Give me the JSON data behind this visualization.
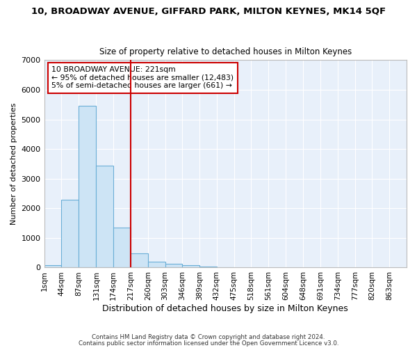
{
  "title": "10, BROADWAY AVENUE, GIFFARD PARK, MILTON KEYNES, MK14 5QF",
  "subtitle": "Size of property relative to detached houses in Milton Keynes",
  "xlabel": "Distribution of detached houses by size in Milton Keynes",
  "ylabel": "Number of detached properties",
  "bar_color": "#cde4f5",
  "bar_edge_color": "#6aaed6",
  "background_color": "#e8f0fa",
  "grid_color": "#ffffff",
  "fig_background": "#ffffff",
  "bins": [
    1,
    44,
    87,
    131,
    174,
    217,
    260,
    303,
    346,
    389,
    432,
    475,
    518,
    561,
    604,
    648,
    691,
    734,
    777,
    820,
    863,
    906
  ],
  "bin_labels": [
    "1sqm",
    "44sqm",
    "87sqm",
    "131sqm",
    "174sqm",
    "217sqm",
    "260sqm",
    "303sqm",
    "346sqm",
    "389sqm",
    "432sqm",
    "475sqm",
    "518sqm",
    "561sqm",
    "604sqm",
    "648sqm",
    "691sqm",
    "734sqm",
    "777sqm",
    "820sqm",
    "863sqm"
  ],
  "bar_heights": [
    80,
    2300,
    5450,
    3450,
    1350,
    480,
    200,
    130,
    80,
    30,
    5,
    0,
    0,
    0,
    0,
    0,
    0,
    0,
    0,
    0,
    0
  ],
  "vline_x": 217,
  "vline_color": "#cc0000",
  "ylim": [
    0,
    7000
  ],
  "yticks": [
    0,
    1000,
    2000,
    3000,
    4000,
    5000,
    6000,
    7000
  ],
  "annotation_title": "10 BROADWAY AVENUE: 221sqm",
  "annotation_line1": "← 95% of detached houses are smaller (12,483)",
  "annotation_line2": "5% of semi-detached houses are larger (661) →",
  "annotation_box_color": "#ffffff",
  "annotation_box_edge": "#cc0000",
  "footer1": "Contains HM Land Registry data © Crown copyright and database right 2024.",
  "footer2": "Contains public sector information licensed under the Open Government Licence v3.0."
}
